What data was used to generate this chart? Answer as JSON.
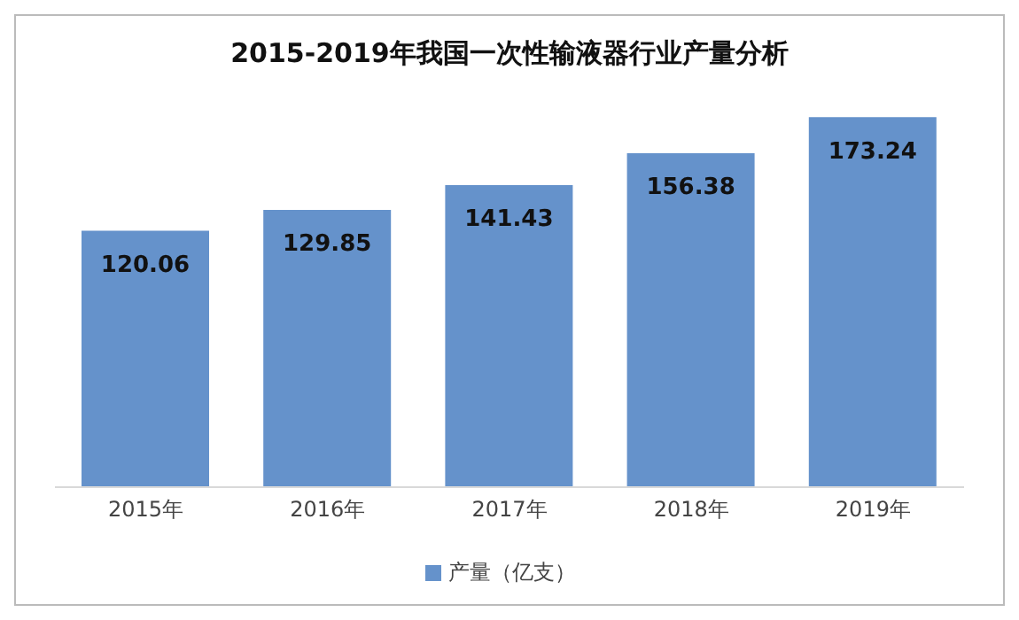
{
  "chart_data": {
    "type": "bar",
    "title": "2015-2019年我国一次性输液器行业产量分析",
    "categories": [
      "2015年",
      "2016年",
      "2017年",
      "2018年",
      "2019年"
    ],
    "series": [
      {
        "name": "产量（亿支）",
        "color": "#6592cb",
        "values": [
          120.06,
          129.85,
          141.43,
          156.38,
          173.24
        ]
      }
    ],
    "data_labels": true,
    "legend": "bottom",
    "grid": false
  }
}
